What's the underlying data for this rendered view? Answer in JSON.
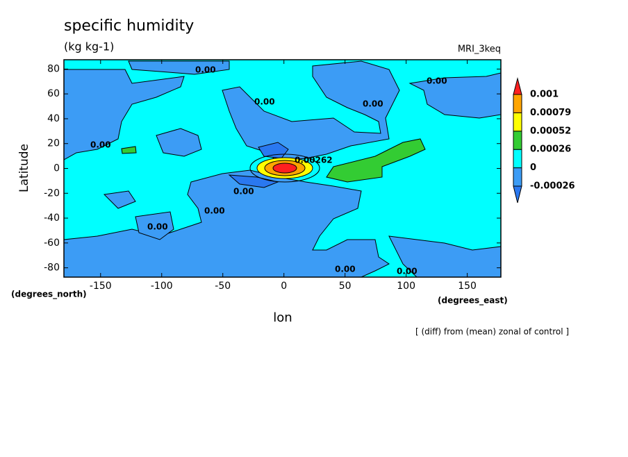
{
  "chart_data": {
    "type": "contour",
    "title": "specific humidity",
    "subtitle": "(kg kg-1)",
    "model": "MRI_3keq",
    "xlabel": "lon",
    "ylabel": "Latitude",
    "x_unit": "(degrees_east)",
    "y_unit": "(degrees_north)",
    "note": "[ (diff) from (mean) zonal of control ]",
    "xlim": [
      -180,
      177.5
    ],
    "ylim": [
      -87.5,
      87.5
    ],
    "xticks": [
      -150,
      -100,
      -50,
      0,
      50,
      100,
      150
    ],
    "yticks": [
      -80,
      -60,
      -40,
      -20,
      0,
      20,
      40,
      60,
      80
    ],
    "colorbar": {
      "levels": [
        -0.00026,
        0,
        0.00026,
        0.00052,
        0.00079,
        0.001
      ],
      "colors": [
        "#2a78f0",
        "#3c9cf5",
        "#00ffff",
        "#33cc33",
        "#ffff00",
        "#ffa500",
        "#ff2020"
      ]
    },
    "contour_labels": [
      "0.00",
      "0.00",
      "0.00",
      "0.00",
      "0.00",
      "0.00",
      "0.00",
      "0.00",
      "0.00",
      "0.00",
      "0.00262"
    ]
  }
}
